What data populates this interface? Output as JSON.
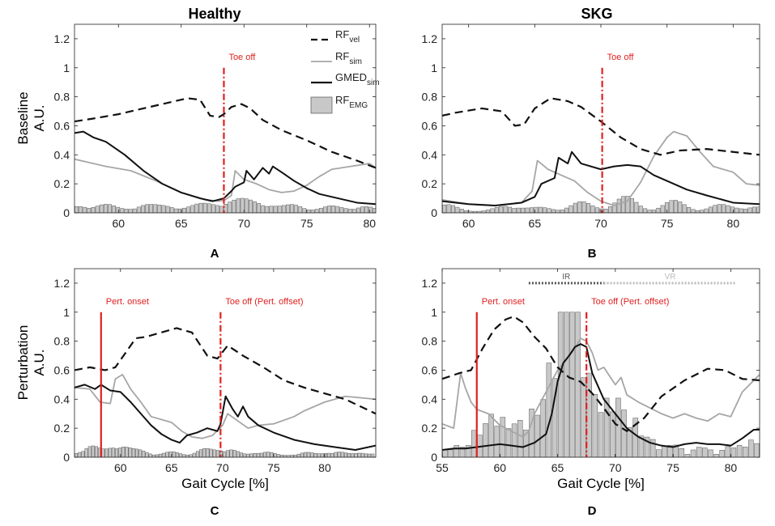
{
  "figure": {
    "col_titles": [
      "Healthy",
      "SKG"
    ],
    "row_titles": [
      [
        "Baseline",
        "A.U."
      ],
      [
        "Perturbation",
        "A.U."
      ]
    ],
    "x_label": "Gait Cycle [%]",
    "panel_letters": [
      "A",
      "B",
      "C",
      "D"
    ]
  },
  "legend": [
    {
      "key": "vel",
      "base": "RF",
      "sub": "vel",
      "style": "dashed",
      "color": "#111111"
    },
    {
      "key": "sim",
      "base": "RF",
      "sub": "sim",
      "style": "solid",
      "color": "#a6a6a6"
    },
    {
      "key": "gmed",
      "base": "GMED",
      "sub": "sim",
      "style": "solid",
      "color": "#111111"
    },
    {
      "key": "emg",
      "base": "RF",
      "sub": "EMG",
      "style": "bar",
      "color": "#c8c8c8"
    }
  ],
  "colors": {
    "vel": "#111111",
    "sim": "#a6a6a6",
    "gmed": "#111111",
    "emg_fill": "#c8c8c8",
    "emg_edge": "#555555",
    "event": "#e02020"
  },
  "chart_data": [
    {
      "id": "A",
      "type": "line",
      "xlim": [
        56.5,
        80.5
      ],
      "ylim": [
        0,
        1.3
      ],
      "xticks": [
        60,
        65,
        70,
        75,
        80
      ],
      "yticks": [
        0,
        0.2,
        0.4,
        0.6,
        0.8,
        1,
        1.2
      ],
      "show_xlabel": false,
      "show_ylabel": true,
      "show_legend": true,
      "emg_step": 0.33,
      "events": [
        {
          "x": 68.4,
          "style": "dashdot",
          "label": "Toe off"
        }
      ],
      "series": {
        "vel": {
          "x": [
            56.5,
            58,
            60,
            62,
            64,
            65.5,
            66.5,
            67.3,
            68,
            68.4,
            69,
            69.8,
            70.5,
            71.5,
            73,
            75,
            77,
            79,
            80.5
          ],
          "y": [
            0.63,
            0.65,
            0.68,
            0.72,
            0.76,
            0.79,
            0.78,
            0.67,
            0.66,
            0.68,
            0.73,
            0.75,
            0.72,
            0.64,
            0.57,
            0.5,
            0.42,
            0.36,
            0.31
          ]
        },
        "sim": {
          "x": [
            56.5,
            57.5,
            59,
            61,
            63,
            65,
            67,
            68,
            68.5,
            69,
            69.3,
            70,
            71,
            72,
            73,
            74,
            75,
            76,
            77,
            78.5,
            80,
            80.5
          ],
          "y": [
            0.37,
            0.35,
            0.32,
            0.29,
            0.22,
            0.14,
            0.09,
            0.08,
            0.09,
            0.12,
            0.29,
            0.23,
            0.2,
            0.16,
            0.14,
            0.15,
            0.19,
            0.25,
            0.3,
            0.32,
            0.34,
            0.31
          ]
        },
        "gmed": {
          "x": [
            56.5,
            57.2,
            58,
            59,
            60.5,
            62,
            63.5,
            65,
            66.5,
            67.5,
            68.4,
            69,
            69.3,
            70,
            70.2,
            70.8,
            71.5,
            72,
            72.3,
            73,
            74,
            75,
            76,
            77.5,
            79,
            80.5
          ],
          "y": [
            0.55,
            0.56,
            0.52,
            0.49,
            0.4,
            0.29,
            0.2,
            0.14,
            0.1,
            0.08,
            0.1,
            0.15,
            0.18,
            0.21,
            0.29,
            0.23,
            0.31,
            0.27,
            0.32,
            0.28,
            0.22,
            0.17,
            0.13,
            0.1,
            0.07,
            0.06
          ]
        },
        "emg": [
          {
            "c": 57,
            "a": 0.04
          },
          {
            "c": 59,
            "a": 0.05
          },
          {
            "c": 62,
            "a": 0.05
          },
          {
            "c": 64,
            "a": 0.04
          },
          {
            "c": 66.5,
            "a": 0.05
          },
          {
            "c": 68.3,
            "a": 0.05
          },
          {
            "c": 69.8,
            "a": 0.07
          },
          {
            "c": 71.5,
            "a": 0.06
          },
          {
            "c": 74,
            "a": 0.05
          },
          {
            "c": 77,
            "a": 0.04
          },
          {
            "c": 79.5,
            "a": 0.04
          }
        ]
      }
    },
    {
      "id": "B",
      "type": "line",
      "xlim": [
        58,
        82
      ],
      "ylim": [
        0,
        1.3
      ],
      "xticks": [
        60,
        65,
        70,
        75,
        80
      ],
      "yticks": [
        0,
        0.2,
        0.4,
        0.6,
        0.8,
        1,
        1.2
      ],
      "show_xlabel": false,
      "show_ylabel": false,
      "show_legend": false,
      "emg_step": 0.33,
      "events": [
        {
          "x": 70.1,
          "style": "dashdot",
          "label": "Toe off"
        }
      ],
      "series": {
        "vel": {
          "x": [
            58,
            59,
            61,
            62.5,
            63.5,
            64.2,
            65,
            66.2,
            67.5,
            68.5,
            70,
            71.5,
            73,
            74.5,
            76,
            78,
            80,
            82
          ],
          "y": [
            0.67,
            0.69,
            0.72,
            0.7,
            0.6,
            0.61,
            0.72,
            0.79,
            0.77,
            0.73,
            0.63,
            0.52,
            0.44,
            0.4,
            0.43,
            0.44,
            0.42,
            0.4
          ]
        },
        "sim": {
          "x": [
            58,
            60,
            62,
            64,
            64.8,
            65.2,
            66,
            67,
            68,
            69,
            70,
            71,
            72,
            73,
            74,
            75,
            75.5,
            76.5,
            77.5,
            78.5,
            80,
            81,
            82
          ],
          "y": [
            0.09,
            0.06,
            0.05,
            0.07,
            0.15,
            0.36,
            0.3,
            0.26,
            0.22,
            0.14,
            0.08,
            0.05,
            0.08,
            0.21,
            0.39,
            0.52,
            0.56,
            0.53,
            0.42,
            0.32,
            0.28,
            0.2,
            0.19
          ]
        },
        "gmed": {
          "x": [
            58,
            60,
            62,
            64,
            65,
            65.5,
            66.5,
            66.8,
            67.5,
            67.8,
            68.5,
            70,
            71,
            72,
            73,
            74,
            75,
            76.5,
            78,
            80,
            82
          ],
          "y": [
            0.08,
            0.06,
            0.05,
            0.07,
            0.11,
            0.2,
            0.24,
            0.38,
            0.34,
            0.42,
            0.34,
            0.3,
            0.32,
            0.33,
            0.32,
            0.26,
            0.22,
            0.16,
            0.12,
            0.07,
            0.06
          ]
        },
        "emg": [
          {
            "c": 58.5,
            "a": 0.05
          },
          {
            "c": 63,
            "a": 0.05
          },
          {
            "c": 65.5,
            "a": 0.03
          },
          {
            "c": 68.5,
            "a": 0.07
          },
          {
            "c": 71.8,
            "a": 0.11
          },
          {
            "c": 75.5,
            "a": 0.08
          },
          {
            "c": 79,
            "a": 0.05
          },
          {
            "c": 81.5,
            "a": 0.04
          }
        ]
      }
    },
    {
      "id": "C",
      "type": "line",
      "xlim": [
        55.5,
        85
      ],
      "ylim": [
        0,
        1.3
      ],
      "xticks": [
        60,
        65,
        70,
        75,
        80
      ],
      "yticks": [
        0,
        0.2,
        0.4,
        0.6,
        0.8,
        1,
        1.2
      ],
      "show_xlabel": true,
      "show_ylabel": true,
      "show_legend": false,
      "emg_step": 0.33,
      "events": [
        {
          "x": 58.1,
          "style": "solid",
          "label": "Pert. onset"
        },
        {
          "x": 69.8,
          "style": "dashdot",
          "label": "Toe off (Pert. offset)"
        }
      ],
      "series": {
        "vel": {
          "x": [
            55.5,
            57,
            58.5,
            59.5,
            60.5,
            61.5,
            62.5,
            64,
            65.5,
            67,
            68.5,
            69.5,
            70.5,
            72,
            74,
            76,
            78,
            80,
            82,
            85
          ],
          "y": [
            0.6,
            0.62,
            0.6,
            0.62,
            0.72,
            0.82,
            0.83,
            0.86,
            0.89,
            0.86,
            0.7,
            0.68,
            0.77,
            0.7,
            0.62,
            0.53,
            0.48,
            0.44,
            0.4,
            0.3
          ]
        },
        "sim": {
          "x": [
            55.5,
            57,
            58,
            59,
            59.5,
            60.2,
            61,
            62,
            63,
            64,
            65,
            66,
            67,
            68,
            69,
            70,
            70.5,
            71.5,
            72.5,
            73.5,
            75,
            77,
            78,
            80,
            82,
            85
          ],
          "y": [
            0.48,
            0.47,
            0.38,
            0.37,
            0.54,
            0.57,
            0.47,
            0.38,
            0.28,
            0.26,
            0.24,
            0.18,
            0.14,
            0.13,
            0.15,
            0.22,
            0.3,
            0.25,
            0.2,
            0.22,
            0.23,
            0.28,
            0.32,
            0.38,
            0.42,
            0.4
          ]
        },
        "gmed": {
          "x": [
            55.5,
            56.5,
            57.5,
            58.1,
            59,
            60,
            61,
            62,
            63,
            64,
            65,
            65.8,
            66.5,
            67.5,
            68.5,
            69.5,
            69.8,
            70.3,
            71,
            71.5,
            72,
            72.5,
            73.5,
            75,
            77,
            79,
            81,
            83,
            85
          ],
          "y": [
            0.48,
            0.5,
            0.47,
            0.5,
            0.46,
            0.45,
            0.38,
            0.3,
            0.22,
            0.16,
            0.12,
            0.1,
            0.15,
            0.17,
            0.2,
            0.18,
            0.23,
            0.42,
            0.33,
            0.28,
            0.35,
            0.28,
            0.22,
            0.17,
            0.12,
            0.09,
            0.07,
            0.05,
            0.08
          ]
        },
        "emg": [
          {
            "c": 57,
            "a": 0.08
          },
          {
            "c": 59.8,
            "a": 0.09
          },
          {
            "c": 62,
            "a": 0.04
          },
          {
            "c": 65,
            "a": 0.03
          },
          {
            "c": 68.2,
            "a": 0.05
          },
          {
            "c": 70.5,
            "a": 0.06
          },
          {
            "c": 74,
            "a": 0.04
          },
          {
            "c": 78,
            "a": 0.03
          },
          {
            "c": 81,
            "a": 0.04
          },
          {
            "c": 84,
            "a": 0.03
          }
        ]
      }
    },
    {
      "id": "D",
      "type": "line",
      "xlim": [
        55,
        82.5
      ],
      "ylim": [
        0,
        1.3
      ],
      "xticks": [
        55,
        60,
        65,
        70,
        75,
        80
      ],
      "yticks": [
        0,
        0.2,
        0.4,
        0.6,
        0.8,
        1,
        1.2
      ],
      "show_xlabel": true,
      "show_ylabel": false,
      "show_legend": false,
      "emg_step": 0.5,
      "events": [
        {
          "x": 58,
          "style": "solid",
          "label": "Pert. onset"
        },
        {
          "x": 67.5,
          "style": "dashdot",
          "label": "Toe off (Pert. offset)"
        }
      ],
      "ranges": [
        {
          "label": "IR",
          "x0": 62.5,
          "x1": 69,
          "y": 1.2,
          "color": "#555555"
        },
        {
          "label": "VR",
          "x0": 69,
          "x1": 80.5,
          "y": 1.2,
          "color": "#bbbbbb"
        }
      ],
      "series": {
        "vel": {
          "x": [
            55,
            56.5,
            57.5,
            58.5,
            59.5,
            60.5,
            61.2,
            62,
            63,
            64,
            65,
            66,
            67,
            68,
            69,
            70,
            71,
            72.5,
            74,
            76,
            78,
            79.5,
            81,
            82.5
          ],
          "y": [
            0.54,
            0.58,
            0.6,
            0.75,
            0.88,
            0.95,
            0.97,
            0.93,
            0.83,
            0.75,
            0.62,
            0.55,
            0.52,
            0.44,
            0.34,
            0.23,
            0.18,
            0.27,
            0.42,
            0.53,
            0.61,
            0.6,
            0.54,
            0.53
          ]
        },
        "sim": {
          "x": [
            55,
            56,
            56.6,
            57,
            57.5,
            58,
            59,
            60,
            61,
            62,
            62.5,
            63,
            64,
            65,
            66,
            66.5,
            67,
            67.5,
            68,
            68.5,
            69,
            69.5,
            70,
            70.5,
            71,
            72,
            73,
            74,
            75,
            76,
            77,
            78,
            79,
            80,
            81,
            82,
            82.5
          ],
          "y": [
            0.23,
            0.2,
            0.58,
            0.48,
            0.38,
            0.33,
            0.3,
            0.22,
            0.18,
            0.14,
            0.18,
            0.3,
            0.45,
            0.6,
            0.7,
            0.75,
            0.82,
            0.8,
            0.72,
            0.6,
            0.62,
            0.56,
            0.5,
            0.55,
            0.43,
            0.38,
            0.34,
            0.3,
            0.27,
            0.3,
            0.27,
            0.25,
            0.3,
            0.28,
            0.45,
            0.53,
            0.57
          ]
        },
        "gmed": {
          "x": [
            55,
            56,
            57,
            58,
            59,
            60,
            61,
            62,
            63,
            64,
            64.5,
            65,
            65.5,
            66,
            66.5,
            67,
            67.5,
            68,
            68.5,
            69,
            70,
            71,
            72,
            73,
            74,
            75,
            76,
            77,
            78,
            79,
            80,
            81,
            82,
            82.5
          ],
          "y": [
            0.05,
            0.06,
            0.06,
            0.07,
            0.08,
            0.09,
            0.08,
            0.07,
            0.1,
            0.16,
            0.3,
            0.52,
            0.65,
            0.7,
            0.76,
            0.78,
            0.76,
            0.58,
            0.49,
            0.4,
            0.3,
            0.2,
            0.14,
            0.1,
            0.08,
            0.07,
            0.09,
            0.1,
            0.09,
            0.09,
            0.08,
            0.13,
            0.19,
            0.19
          ]
        },
        "emg": [
          {
            "c": 56,
            "a": 0.08
          },
          {
            "c": 58,
            "a": 0.18
          },
          {
            "c": 59.5,
            "a": 0.3
          },
          {
            "c": 61,
            "a": 0.22
          },
          {
            "c": 62.5,
            "a": 0.28
          },
          {
            "c": 64,
            "a": 0.4
          },
          {
            "c": 65.3,
            "a": 1.0
          },
          {
            "c": 66.3,
            "a": 0.9
          },
          {
            "c": 67.2,
            "a": 0.5
          },
          {
            "c": 68.5,
            "a": 0.35
          },
          {
            "c": 70,
            "a": 0.42
          },
          {
            "c": 71.5,
            "a": 0.25
          },
          {
            "c": 73,
            "a": 0.12
          },
          {
            "c": 75,
            "a": 0.1
          },
          {
            "c": 77.5,
            "a": 0.08
          },
          {
            "c": 80,
            "a": 0.08
          },
          {
            "c": 81.8,
            "a": 0.12
          }
        ]
      }
    }
  ]
}
